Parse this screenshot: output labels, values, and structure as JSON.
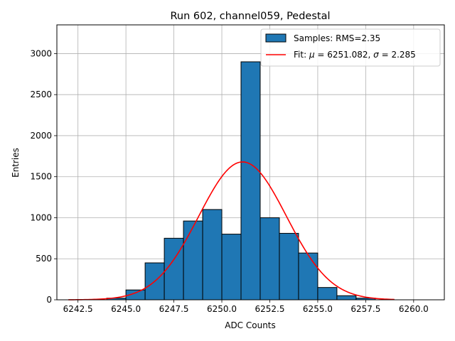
{
  "chart_data": {
    "type": "bar",
    "title": "Run 602, channel059, Pedestal",
    "xlabel": "ADC Counts",
    "ylabel": "Entries",
    "xlim": [
      6241.4,
      6261.6
    ],
    "ylim": [
      0,
      3350
    ],
    "grid": true,
    "legend_position": "top-right",
    "x_ticks": [
      6242.5,
      6245.0,
      6247.5,
      6250.0,
      6252.5,
      6255.0,
      6257.5,
      6260.0
    ],
    "x_tick_labels": [
      "6242.5",
      "6245.0",
      "6247.5",
      "6250.0",
      "6252.5",
      "6255.0",
      "6257.5",
      "6260.0"
    ],
    "y_ticks": [
      0,
      500,
      1000,
      1500,
      2000,
      2500,
      3000
    ],
    "y_tick_labels": [
      "0",
      "500",
      "1000",
      "1500",
      "2000",
      "2500",
      "3000"
    ],
    "histogram": {
      "name": "Samples: RMS=2.35",
      "bin_edges": [
        6242,
        6243,
        6244,
        6245,
        6246,
        6247,
        6248,
        6249,
        6250,
        6251,
        6252,
        6253,
        6254,
        6255,
        6256,
        6257,
        6258,
        6259,
        6260,
        6261
      ],
      "counts": [
        0,
        0,
        20,
        120,
        450,
        750,
        960,
        1100,
        800,
        2900,
        1000,
        810,
        570,
        150,
        50,
        20,
        0,
        0,
        0
      ],
      "color": "#1f77b4",
      "edge_color": "#000000"
    },
    "fit": {
      "name_prefix": "Fit: ",
      "mu_symbol": "μ",
      "sigma_symbol": "σ",
      "mu_text": " = 6251.082, ",
      "sigma_text": " = 2.285",
      "mu": 6251.082,
      "sigma": 2.285,
      "peak": 1680,
      "x_range": [
        6242,
        6259
      ],
      "color": "#ff0000"
    }
  }
}
